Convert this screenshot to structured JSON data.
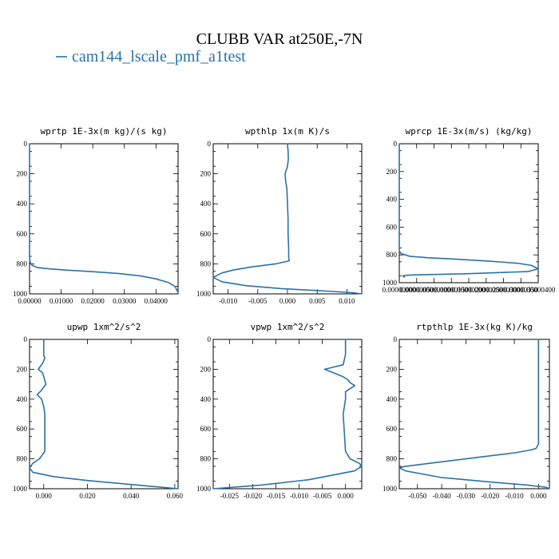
{
  "figure": {
    "title": "CLUBB VAR at250E,-7N",
    "legend_label": "cam144_lscale_pmf_a1test",
    "series_color": "#2a72a8"
  },
  "chart_data": [
    {
      "type": "line",
      "title": "wprtp  1E-3x(m kg)/(s kg)",
      "xlim": [
        0.0,
        0.047
      ],
      "ylim": [
        1000,
        0
      ],
      "xticks": [
        0.0,
        0.01,
        0.02,
        0.03,
        0.04
      ],
      "xtick_labels": [
        "0.00000",
        "0.01000",
        "0.02000",
        "0.03000",
        "0.04000"
      ],
      "yticks": [
        0,
        200,
        400,
        600,
        800,
        1000
      ],
      "series": [
        {
          "x": [
            0,
            0,
            0.0002,
            0.0008,
            0.0025,
            0.006,
            0.012,
            0.02,
            0.028,
            0.035,
            0.04,
            0.044,
            0.046,
            0.047
          ],
          "y": [
            0,
            760,
            790,
            810,
            825,
            833,
            842,
            852,
            864,
            880,
            900,
            925,
            950,
            990
          ]
        }
      ]
    },
    {
      "type": "line",
      "title": "wpthlp  1x(m K)/s",
      "xlim": [
        -0.0125,
        0.0125
      ],
      "ylim": [
        1000,
        0
      ],
      "xticks": [
        -0.01,
        -0.005,
        0.0,
        0.005,
        0.01
      ],
      "xtick_labels": [
        "-0.010",
        "-0.005",
        "0.000",
        "0.005",
        "0.010"
      ],
      "yticks": [
        0,
        200,
        400,
        600,
        800,
        1000
      ],
      "series": [
        {
          "x": [
            0,
            0.0001,
            0.00015,
            0,
            -0.0004,
            -0.0003,
            -0.0001,
            0,
            0.0001,
            0.0001,
            0.0002,
            0.0002,
            0.0003,
            -0.002,
            -0.006,
            -0.009,
            -0.011,
            -0.0125,
            -0.011,
            -0.007,
            -0.001,
            0.006,
            0.011,
            0.0125
          ],
          "y": [
            0,
            50,
            100,
            150,
            200,
            250,
            300,
            400,
            500,
            600,
            700,
            760,
            780,
            800,
            820,
            840,
            860,
            890,
            920,
            945,
            965,
            980,
            992,
            1000
          ]
        }
      ]
    },
    {
      "type": "line",
      "title": "wprcp  1E-3x(m/s) (kg/kg)",
      "xlim": [
        0.0,
        4e-06
      ],
      "ylim": [
        1000,
        0
      ],
      "xticks": [
        0.0,
        5e-07,
        1e-06,
        1.5e-06,
        2e-06,
        2.5e-06,
        3e-06,
        3.5e-06,
        4e-06
      ],
      "xtick_labels": [
        "0.00000000",
        "0.00000050",
        "0.00000100",
        "0.00000150",
        "0.00000200",
        "0.00000250",
        "0.00000300",
        "0.00000350",
        "0.00000400"
      ],
      "yticks": [
        0,
        200,
        400,
        600,
        800,
        1000
      ],
      "series": [
        {
          "x": [
            0,
            0,
            5e-08,
            3e-07,
            8e-07,
            1.6e-06,
            2.6e-06,
            3.4e-06,
            3.8e-06,
            4e-06,
            3.7e-06,
            2e-06,
            3e-07,
            1e-07,
            1.5e-07
          ],
          "y": [
            0,
            770,
            790,
            810,
            820,
            830,
            845,
            860,
            875,
            900,
            920,
            935,
            945,
            950,
            960
          ]
        }
      ]
    },
    {
      "type": "line",
      "title": "upwp  1xm^2/s^2",
      "xlim": [
        -0.0065,
        0.0615
      ],
      "ylim": [
        1000,
        0
      ],
      "xticks": [
        0.0,
        0.02,
        0.04,
        0.06
      ],
      "xtick_labels": [
        "0.000",
        "0.020",
        "0.040",
        "0.060"
      ],
      "yticks": [
        0,
        200,
        400,
        600,
        800,
        1000
      ],
      "series": [
        {
          "x": [
            0,
            0,
            0.0005,
            -0.0005,
            -0.0025,
            -0.0005,
            0.001,
            -0.001,
            -0.003,
            -0.001,
            0,
            0.0005,
            0.0005,
            0.0005,
            -0.002,
            -0.005,
            -0.0065,
            -0.005,
            0.005,
            0.02,
            0.035,
            0.05,
            0.0615
          ],
          "y": [
            0,
            110,
            125,
            160,
            200,
            225,
            300,
            340,
            370,
            400,
            450,
            500,
            600,
            750,
            800,
            830,
            860,
            890,
            920,
            945,
            965,
            985,
            1000
          ]
        }
      ]
    },
    {
      "type": "line",
      "title": "vpwp  1xm^2/s^2",
      "xlim": [
        -0.0285,
        0.0035
      ],
      "ylim": [
        1000,
        0
      ],
      "xticks": [
        -0.025,
        -0.02,
        -0.015,
        -0.01,
        -0.005,
        0.0
      ],
      "xtick_labels": [
        "-0.025",
        "-0.020",
        "-0.015",
        "-0.010",
        "-0.005",
        "0.000"
      ],
      "yticks": [
        0,
        200,
        400,
        600,
        800,
        1000
      ],
      "series": [
        {
          "x": [
            0,
            0,
            -0.0005,
            -0.0045,
            -0.0005,
            0.0005,
            0.001,
            0.002,
            0,
            0,
            -0.0005,
            0,
            0.001,
            0.003,
            0.0035,
            0.002,
            -0.008,
            -0.018,
            -0.025,
            -0.0285
          ],
          "y": [
            0,
            100,
            170,
            200,
            250,
            270,
            290,
            310,
            350,
            400,
            500,
            750,
            800,
            830,
            850,
            880,
            940,
            975,
            992,
            1000
          ]
        }
      ]
    },
    {
      "type": "line",
      "title": "rtpthlp  1E-3x(kg K)/kg",
      "xlim": [
        -0.0575,
        0.0045
      ],
      "ylim": [
        1000,
        0
      ],
      "xticks": [
        -0.05,
        -0.04,
        -0.03,
        -0.02,
        -0.01,
        0.0
      ],
      "xtick_labels": [
        "-0.050",
        "-0.040",
        "-0.030",
        "-0.020",
        "-0.010",
        "0.000"
      ],
      "yticks": [
        0,
        200,
        400,
        600,
        800,
        1000
      ],
      "series": [
        {
          "x": [
            0,
            0,
            0,
            -0.001,
            -0.003,
            -0.01,
            -0.025,
            -0.045,
            -0.055,
            -0.0575,
            -0.055,
            -0.04,
            -0.02,
            -0.005,
            0.003,
            0.0045
          ],
          "y": [
            0,
            200,
            700,
            730,
            740,
            760,
            790,
            830,
            850,
            860,
            880,
            925,
            955,
            975,
            990,
            1000
          ]
        }
      ]
    }
  ]
}
